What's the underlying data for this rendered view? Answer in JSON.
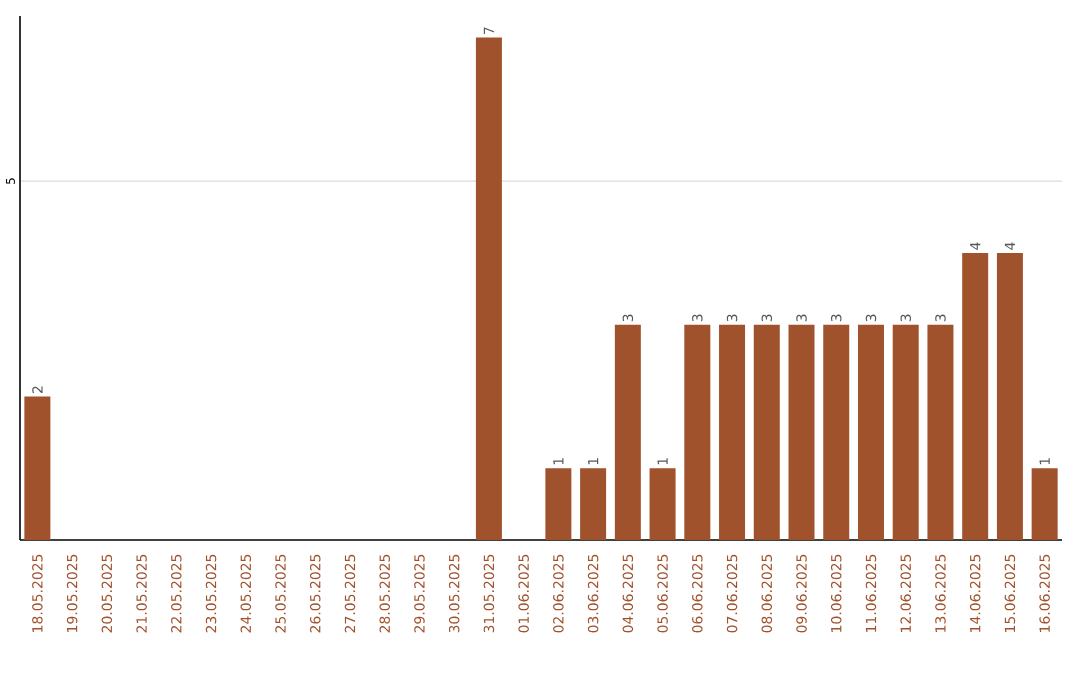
{
  "chart_data": {
    "type": "bar",
    "categories": [
      "18.05.2025",
      "19.05.2025",
      "20.05.2025",
      "21.05.2025",
      "22.05.2025",
      "23.05.2025",
      "24.05.2025",
      "25.05.2025",
      "26.05.2025",
      "27.05.2025",
      "28.05.2025",
      "29.05.2025",
      "30.05.2025",
      "31.05.2025",
      "01.06.2025",
      "02.06.2025",
      "03.06.2025",
      "04.06.2025",
      "05.06.2025",
      "06.06.2025",
      "07.06.2025",
      "08.06.2025",
      "09.06.2025",
      "10.06.2025",
      "11.06.2025",
      "12.06.2025",
      "13.06.2025",
      "14.06.2025",
      "15.06.2025",
      "16.06.2025"
    ],
    "values": [
      2,
      0,
      0,
      0,
      0,
      0,
      0,
      0,
      0,
      0,
      0,
      0,
      0,
      7,
      0,
      1,
      1,
      3,
      1,
      3,
      3,
      3,
      3,
      3,
      3,
      3,
      3,
      4,
      4,
      1
    ],
    "value_labels": [
      "2",
      null,
      null,
      null,
      null,
      null,
      null,
      null,
      null,
      null,
      null,
      null,
      null,
      "7",
      null,
      "1",
      "1",
      "3",
      "1",
      "3",
      "3",
      "3",
      "3",
      "3",
      "3",
      "3",
      "3",
      "4",
      "4",
      "1"
    ],
    "color": "#a0522d",
    "ylim": [
      0,
      7.3
    ],
    "yticks": [
      5
    ],
    "grid": "y"
  }
}
